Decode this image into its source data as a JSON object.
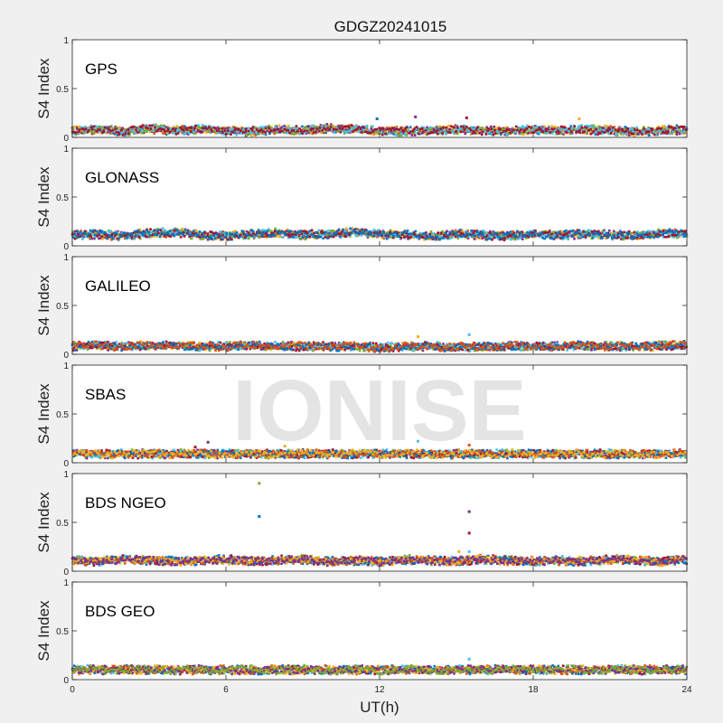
{
  "chart_data": {
    "type": "scatter",
    "title": "GDGZ20241015",
    "xlabel": "UT(h)",
    "ylabel": "S4 Index",
    "xlim": [
      0,
      24
    ],
    "ylim": [
      0,
      1
    ],
    "xticks": [
      "0",
      "6",
      "12",
      "18",
      "24"
    ],
    "yticks": [
      "0",
      "0.5",
      "1"
    ],
    "watermark": "IONISE",
    "series_colors": [
      "#0072BD",
      "#D95319",
      "#EDB120",
      "#7E2F8E",
      "#77AC30",
      "#4DBEEE",
      "#A2142F"
    ],
    "panels": [
      {
        "label": "GPS",
        "baseline": [
          0.07,
          0.08,
          0.06,
          0.09,
          0.07,
          0.08,
          0.07,
          0.06,
          0.08,
          0.07,
          0.09,
          0.08,
          0.07,
          0.06,
          0.07,
          0.08,
          0.07,
          0.06,
          0.08,
          0.07,
          0.08,
          0.07,
          0.06,
          0.07,
          0.08
        ],
        "outliers": [
          {
            "x": 11.9,
            "y": 0.19
          },
          {
            "x": 13.4,
            "y": 0.21
          },
          {
            "x": 15.4,
            "y": 0.2
          },
          {
            "x": 19.8,
            "y": 0.19
          }
        ]
      },
      {
        "label": "GLONASS",
        "baseline": [
          0.11,
          0.12,
          0.1,
          0.13,
          0.14,
          0.11,
          0.1,
          0.12,
          0.13,
          0.11,
          0.12,
          0.14,
          0.12,
          0.11,
          0.1,
          0.12,
          0.11,
          0.1,
          0.12,
          0.11,
          0.12,
          0.11,
          0.1,
          0.13,
          0.12
        ],
        "outliers": []
      },
      {
        "label": "GALILEO",
        "baseline": [
          0.08,
          0.09,
          0.08,
          0.09,
          0.09,
          0.08,
          0.08,
          0.09,
          0.08,
          0.08,
          0.08,
          0.08,
          0.07,
          0.08,
          0.08,
          0.07,
          0.08,
          0.08,
          0.08,
          0.08,
          0.09,
          0.08,
          0.08,
          0.09,
          0.09
        ],
        "outliers": [
          {
            "x": 13.5,
            "y": 0.18
          },
          {
            "x": 15.5,
            "y": 0.2
          }
        ]
      },
      {
        "label": "SBAS",
        "baseline": [
          0.09,
          0.09,
          0.09,
          0.09,
          0.09,
          0.09,
          0.09,
          0.09,
          0.09,
          0.09,
          0.09,
          0.09,
          0.09,
          0.09,
          0.09,
          0.09,
          0.09,
          0.09,
          0.09,
          0.09,
          0.09,
          0.09,
          0.09,
          0.09,
          0.09
        ],
        "outliers": [
          {
            "x": 5.3,
            "y": 0.21
          },
          {
            "x": 4.8,
            "y": 0.16
          },
          {
            "x": 8.3,
            "y": 0.17
          },
          {
            "x": 13.5,
            "y": 0.22
          },
          {
            "x": 15.5,
            "y": 0.18
          }
        ]
      },
      {
        "label": "BDS NGEO",
        "baseline": [
          0.11,
          0.1,
          0.12,
          0.11,
          0.1,
          0.11,
          0.12,
          0.1,
          0.11,
          0.12,
          0.1,
          0.11,
          0.1,
          0.12,
          0.11,
          0.1,
          0.12,
          0.11,
          0.1,
          0.11,
          0.1,
          0.12,
          0.11,
          0.1,
          0.12
        ],
        "outliers": [
          {
            "x": 7.3,
            "y": 0.9
          },
          {
            "x": 7.3,
            "y": 0.56
          },
          {
            "x": 15.5,
            "y": 0.61
          },
          {
            "x": 15.5,
            "y": 0.39
          },
          {
            "x": 15.1,
            "y": 0.2
          },
          {
            "x": 15.5,
            "y": 0.2
          }
        ]
      },
      {
        "label": "BDS GEO",
        "baseline": [
          0.1,
          0.1,
          0.1,
          0.1,
          0.1,
          0.1,
          0.1,
          0.1,
          0.1,
          0.1,
          0.1,
          0.1,
          0.1,
          0.1,
          0.1,
          0.1,
          0.1,
          0.1,
          0.1,
          0.1,
          0.1,
          0.1,
          0.1,
          0.1,
          0.1
        ],
        "outliers": [
          {
            "x": 15.5,
            "y": 0.21
          }
        ]
      }
    ]
  }
}
